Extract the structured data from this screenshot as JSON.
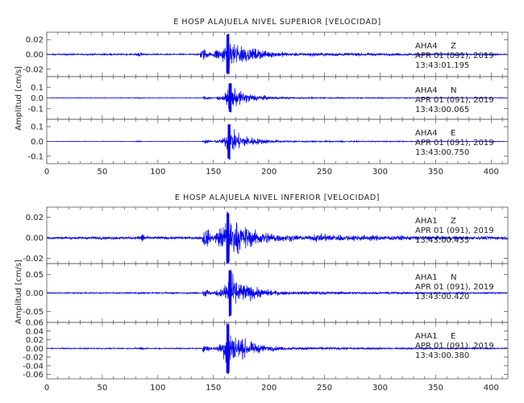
{
  "chart_data": [
    {
      "type": "line",
      "title": "E HOSP ALAJUELA NIVEL SUPERIOR [VELOCIDAD]",
      "ylabel": "Amplitud [cm/s]",
      "xlim": [
        0,
        415
      ],
      "xticks": [
        "0",
        "50",
        "100",
        "150",
        "200",
        "250",
        "300",
        "350",
        "400"
      ],
      "grid": false,
      "line_color": "#0000ee",
      "series": [
        {
          "name": "AHA4 Z",
          "station": "AHA4",
          "component": "Z",
          "date": "APR 01 (091), 2019",
          "time": "13:43:01.195",
          "ylim": [
            -0.03,
            0.03
          ],
          "yticks": [
            -0.02,
            0.0,
            0.02
          ],
          "ytick_labels": [
            "-0.02",
            "0.00",
            "0.02"
          ],
          "amplitude": {
            "noise": 0.0011,
            "p_arrival": 138,
            "p_amp": 0.009,
            "s_arrival": 157,
            "peak_time": 163,
            "peak_amp": 0.028,
            "decay_end": 235,
            "coda_amp": 0.002,
            "wavelet_time": 83,
            "wavelet_amp": 0.003
          }
        },
        {
          "name": "AHA4 N",
          "station": "AHA4",
          "component": "N",
          "date": "APR 01 (091), 2019",
          "time": "13:43:00.065",
          "ylim": [
            -0.2,
            0.2
          ],
          "yticks": [
            -0.1,
            0.0,
            0.1
          ],
          "ytick_labels": [
            "-0.1",
            "0.0",
            "0.1"
          ],
          "amplitude": {
            "noise": 0.003,
            "p_arrival": 140,
            "p_amp": 0.02,
            "s_arrival": 157,
            "peak_time": 165,
            "peak_amp": 0.14,
            "decay_end": 225,
            "coda_amp": 0.006,
            "wavelet_time": 83,
            "wavelet_amp": 0.005
          }
        },
        {
          "name": "AHA4 E",
          "station": "AHA4",
          "component": "E",
          "date": "APR 01 (091), 2019",
          "time": "13:43:00.750",
          "ylim": [
            -0.15,
            0.15
          ],
          "yticks": [
            -0.1,
            0.0,
            0.1
          ],
          "ytick_labels": [
            "-0.1",
            "0.0",
            "0.1"
          ],
          "amplitude": {
            "noise": 0.002,
            "p_arrival": 140,
            "p_amp": 0.015,
            "s_arrival": 157,
            "peak_time": 164,
            "peak_amp": 0.125,
            "decay_end": 220,
            "coda_amp": 0.005,
            "wavelet_time": 83,
            "wavelet_amp": 0.004
          }
        }
      ]
    },
    {
      "type": "line",
      "title": "E HOSP ALAJUELA NIVEL INFERIOR [VELOCIDAD]",
      "ylabel": "Amplitud [cm/s]",
      "xlim": [
        0,
        415
      ],
      "xticks": [
        "0",
        "50",
        "100",
        "150",
        "200",
        "250",
        "300",
        "350",
        "400"
      ],
      "grid": false,
      "line_color": "#0000ee",
      "series": [
        {
          "name": "AHA1 Z",
          "station": "AHA1",
          "component": "Z",
          "date": "APR 01 (091), 2019",
          "time": "13:43:00.435",
          "ylim": [
            -0.025,
            0.03
          ],
          "yticks": [
            -0.02,
            0.0,
            0.02
          ],
          "ytick_labels": [
            "-0.02",
            "0.00",
            "0.02"
          ],
          "amplitude": {
            "noise": 0.0016,
            "p_arrival": 140,
            "p_amp": 0.01,
            "s_arrival": 155,
            "peak_time": 163,
            "peak_amp": 0.026,
            "decay_end": 240,
            "coda_amp": 0.003,
            "wavelet_time": 86,
            "wavelet_amp": 0.004
          }
        },
        {
          "name": "AHA1 N",
          "station": "AHA1",
          "component": "N",
          "date": "APR 01 (091), 2019",
          "time": "13:43:00.420",
          "ylim": [
            -0.08,
            0.08
          ],
          "yticks": [
            -0.05,
            0.0,
            0.05
          ],
          "ytick_labels": [
            "-0.05",
            "0.00",
            "0.05"
          ],
          "amplitude": {
            "noise": 0.002,
            "p_arrival": 140,
            "p_amp": 0.012,
            "s_arrival": 157,
            "peak_time": 165,
            "peak_amp": 0.065,
            "decay_end": 225,
            "coda_amp": 0.004,
            "wavelet_time": 86,
            "wavelet_amp": 0.003
          }
        },
        {
          "name": "AHA1 E",
          "station": "AHA1",
          "component": "E",
          "date": "APR 01 (091), 2019",
          "time": "13:43:00.380",
          "ylim": [
            -0.07,
            0.06
          ],
          "yticks": [
            -0.06,
            -0.04,
            -0.02,
            0.0,
            0.02,
            0.04,
            0.06
          ],
          "ytick_labels": [
            "-0.06",
            "-0.04",
            "-0.02",
            "0.00",
            "0.02",
            "0.04",
            "0.06"
          ],
          "amplitude": {
            "noise": 0.0015,
            "p_arrival": 140,
            "p_amp": 0.01,
            "s_arrival": 155,
            "peak_time": 163,
            "peak_amp": 0.06,
            "decay_end": 220,
            "coda_amp": 0.003,
            "wavelet_time": 86,
            "wavelet_amp": 0.003
          }
        }
      ]
    }
  ]
}
